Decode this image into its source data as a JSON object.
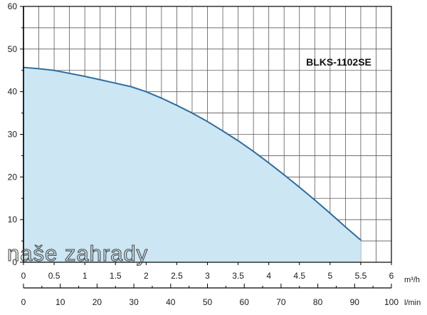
{
  "chart_data": {
    "type": "area",
    "model_label": "BLKS-1102SE",
    "watermark": "naše zahrady",
    "x_primary": {
      "unit": "m³/h",
      "range": [
        0,
        6
      ],
      "ticks": [
        "0",
        "0.5",
        "1",
        "1.5",
        "2",
        "2.5",
        "3",
        "3.5",
        "4",
        "4.5",
        "5",
        "5.5",
        "6"
      ]
    },
    "x_secondary": {
      "unit": "l/min",
      "range": [
        0,
        100
      ],
      "ticks": [
        "0",
        "10",
        "20",
        "30",
        "40",
        "50",
        "60",
        "70",
        "80",
        "90",
        "100"
      ]
    },
    "y": {
      "range": [
        0,
        60
      ],
      "ticks": [
        "0",
        "10",
        "20",
        "30",
        "40",
        "50",
        "60"
      ]
    },
    "grid": true,
    "series": [
      {
        "x": [
          0,
          0.25,
          0.5,
          0.75,
          1.0,
          1.25,
          1.5,
          1.75,
          2.0,
          2.25,
          2.5,
          2.75,
          3.0,
          3.25,
          3.5,
          3.75,
          4.0,
          4.25,
          4.5,
          4.75,
          5.0,
          5.25,
          5.5
        ],
        "y": [
          45.7,
          45.4,
          45.0,
          44.3,
          43.6,
          42.8,
          42.0,
          41.2,
          40.0,
          38.5,
          36.8,
          35.0,
          33.0,
          30.8,
          28.5,
          26.0,
          23.3,
          20.5,
          17.6,
          14.6,
          11.5,
          8.3,
          5.2
        ],
        "color": "#2e6e9e",
        "fill": "#cce6f3"
      }
    ],
    "colors": {
      "grid": "#5a5a5a",
      "axis": "#000000",
      "line": "#2e6e9e",
      "fill": "#cce6f3"
    }
  }
}
